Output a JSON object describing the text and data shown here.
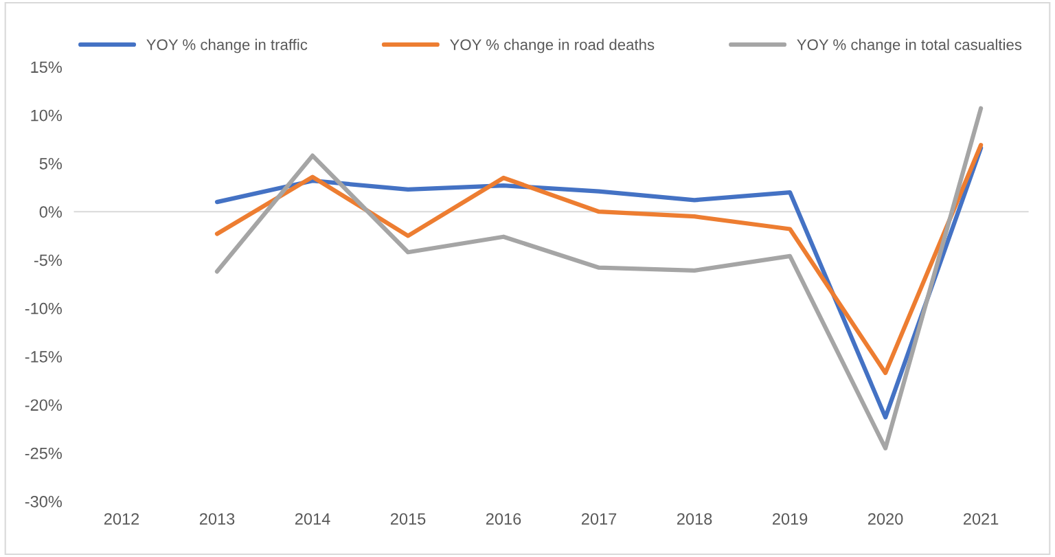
{
  "chart_data": {
    "type": "line",
    "categories": [
      "2012",
      "2013",
      "2014",
      "2015",
      "2016",
      "2017",
      "2018",
      "2019",
      "2020",
      "2021"
    ],
    "series": [
      {
        "name": "YOY % change in traffic",
        "color": "#4472c4",
        "values": [
          null,
          1.0,
          3.2,
          2.3,
          2.7,
          2.1,
          1.2,
          2.0,
          -21.3,
          6.6
        ]
      },
      {
        "name": "YOY % change in road deaths",
        "color": "#ed7d31",
        "values": [
          null,
          -2.3,
          3.6,
          -2.5,
          3.5,
          0,
          -0.5,
          -1.8,
          -16.7,
          6.9
        ]
      },
      {
        "name": "YOY % change in total casualties",
        "color": "#a5a5a5",
        "values": [
          null,
          -6.2,
          5.8,
          -4.2,
          -2.6,
          -5.8,
          -6.1,
          -4.6,
          -24.5,
          10.7
        ]
      }
    ],
    "ylim": [
      -30,
      15
    ],
    "yticks": [
      {
        "value": 15,
        "label": "15%"
      },
      {
        "value": 10,
        "label": "10%"
      },
      {
        "value": 5,
        "label": "5%"
      },
      {
        "value": 0,
        "label": "0%"
      },
      {
        "value": -5,
        "label": "-5%"
      },
      {
        "value": -10,
        "label": "-10%"
      },
      {
        "value": -15,
        "label": "-15%"
      },
      {
        "value": -20,
        "label": "-20%"
      },
      {
        "value": -25,
        "label": "-25%"
      },
      {
        "value": -30,
        "label": "-30%"
      }
    ],
    "ref_lines": [
      {
        "axis": "y",
        "value": 0,
        "color": "#d9d9d9"
      }
    ],
    "grid": false,
    "legend": "top",
    "marker": "none",
    "line_style": "solid"
  }
}
